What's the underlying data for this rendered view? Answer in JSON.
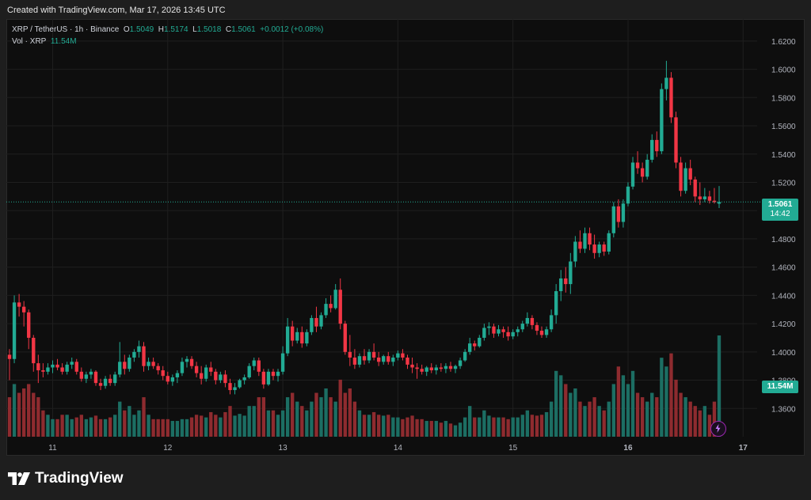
{
  "header": {
    "caption": "Created with TradingView.com, Mar 17, 2026 13:45 UTC"
  },
  "legend": {
    "symbol": "XRP / TetherUS · 1h · Binance",
    "o_label": "O",
    "o": "1.5049",
    "h_label": "H",
    "h": "1.5174",
    "l_label": "L",
    "l": "1.5018",
    "c_label": "C",
    "c": "1.5061",
    "change": "+0.0012 (+0.08%)",
    "vol_label": "Vol · XRP",
    "vol": "11.54M"
  },
  "badges": {
    "price": "1.5061",
    "countdown": "14:42",
    "volume": "11.54M"
  },
  "branding": {
    "name": "TradingView"
  },
  "icons": {
    "logo": "tradingview-logo-icon",
    "bolt": "lightning-bolt-icon"
  },
  "colors": {
    "up": "#22ab94",
    "down": "#f23645",
    "up_vol": "#1c6e63",
    "down_vol": "#8e2b2f",
    "background": "#0e0e0e",
    "grid": "#1f1f1f"
  },
  "chart_data": {
    "type": "candlestick",
    "title": "",
    "symbol": "XRPUSDT",
    "interval": "1h",
    "y_axis": {
      "side": "right",
      "ylim": [
        1.34,
        1.63
      ],
      "ticks": [
        1.36,
        1.38,
        1.4,
        1.42,
        1.44,
        1.46,
        1.48,
        1.5,
        1.52,
        1.54,
        1.56,
        1.58,
        1.6,
        1.62
      ],
      "tick_labels": [
        "1.3600",
        "1.3800",
        "1.4000",
        "1.4200",
        "1.4400",
        "1.4600",
        "1.4800",
        "1.5000",
        "1.5200",
        "1.5400",
        "1.5600",
        "1.5800",
        "1.6000",
        "1.6200"
      ]
    },
    "x_axis": {
      "tick_labels": [
        "11",
        "12",
        "13",
        "14",
        "15",
        "16",
        "17"
      ],
      "tick_index": [
        9,
        33,
        57,
        81,
        105,
        129,
        153
      ]
    },
    "last_price": 1.5061,
    "volume_max": 11.54,
    "grid": true,
    "candles": [
      [
        1.398,
        1.402,
        1.38,
        1.395,
        4.5
      ],
      [
        1.395,
        1.44,
        1.392,
        1.435,
        6
      ],
      [
        1.435,
        1.441,
        1.425,
        1.432,
        5
      ],
      [
        1.432,
        1.436,
        1.418,
        1.428,
        5.5
      ],
      [
        1.428,
        1.43,
        1.402,
        1.41,
        6
      ],
      [
        1.41,
        1.412,
        1.386,
        1.392,
        5
      ],
      [
        1.392,
        1.398,
        1.378,
        1.387,
        4.5
      ],
      [
        1.387,
        1.392,
        1.382,
        1.386,
        3
      ],
      [
        1.386,
        1.392,
        1.384,
        1.389,
        2.5
      ],
      [
        1.389,
        1.394,
        1.385,
        1.391,
        2
      ],
      [
        1.391,
        1.395,
        1.387,
        1.389,
        2
      ],
      [
        1.389,
        1.392,
        1.384,
        1.386,
        2.5
      ],
      [
        1.386,
        1.393,
        1.384,
        1.391,
        2.5
      ],
      [
        1.391,
        1.396,
        1.388,
        1.393,
        2
      ],
      [
        1.393,
        1.395,
        1.384,
        1.386,
        2.2
      ],
      [
        1.386,
        1.389,
        1.379,
        1.381,
        2.5
      ],
      [
        1.381,
        1.386,
        1.378,
        1.384,
        2
      ],
      [
        1.384,
        1.388,
        1.381,
        1.386,
        2.2
      ],
      [
        1.386,
        1.387,
        1.376,
        1.378,
        2.4
      ],
      [
        1.378,
        1.381,
        1.373,
        1.376,
        2
      ],
      [
        1.376,
        1.383,
        1.374,
        1.381,
        2
      ],
      [
        1.381,
        1.384,
        1.376,
        1.378,
        2.2
      ],
      [
        1.378,
        1.386,
        1.376,
        1.384,
        2.5
      ],
      [
        1.384,
        1.407,
        1.382,
        1.393,
        4
      ],
      [
        1.393,
        1.398,
        1.384,
        1.388,
        3
      ],
      [
        1.388,
        1.398,
        1.386,
        1.396,
        3.5
      ],
      [
        1.396,
        1.402,
        1.393,
        1.4,
        2.5
      ],
      [
        1.4,
        1.408,
        1.396,
        1.404,
        3
      ],
      [
        1.404,
        1.407,
        1.386,
        1.39,
        4.5
      ],
      [
        1.39,
        1.396,
        1.387,
        1.393,
        2.5
      ],
      [
        1.393,
        1.396,
        1.388,
        1.39,
        2
      ],
      [
        1.39,
        1.392,
        1.384,
        1.387,
        2
      ],
      [
        1.387,
        1.39,
        1.38,
        1.383,
        2
      ],
      [
        1.383,
        1.386,
        1.377,
        1.379,
        2
      ],
      [
        1.379,
        1.384,
        1.376,
        1.382,
        1.8
      ],
      [
        1.382,
        1.387,
        1.378,
        1.385,
        1.8
      ],
      [
        1.385,
        1.396,
        1.383,
        1.393,
        2
      ],
      [
        1.393,
        1.397,
        1.389,
        1.395,
        2
      ],
      [
        1.395,
        1.397,
        1.388,
        1.39,
        2.2
      ],
      [
        1.39,
        1.393,
        1.382,
        1.385,
        2.5
      ],
      [
        1.385,
        1.39,
        1.377,
        1.381,
        2.4
      ],
      [
        1.381,
        1.391,
        1.379,
        1.389,
        2.2
      ],
      [
        1.389,
        1.393,
        1.383,
        1.386,
        2.8
      ],
      [
        1.386,
        1.388,
        1.377,
        1.38,
        2.5
      ],
      [
        1.38,
        1.386,
        1.378,
        1.384,
        2.2
      ],
      [
        1.384,
        1.387,
        1.375,
        1.378,
        2.8
      ],
      [
        1.378,
        1.381,
        1.37,
        1.373,
        3.5
      ],
      [
        1.373,
        1.378,
        1.37,
        1.375,
        2.4
      ],
      [
        1.375,
        1.381,
        1.374,
        1.38,
        2.6
      ],
      [
        1.38,
        1.384,
        1.377,
        1.382,
        2.4
      ],
      [
        1.382,
        1.392,
        1.381,
        1.39,
        3.5
      ],
      [
        1.39,
        1.396,
        1.387,
        1.394,
        3.5
      ],
      [
        1.394,
        1.396,
        1.383,
        1.386,
        4.5
      ],
      [
        1.386,
        1.388,
        1.374,
        1.377,
        4.5
      ],
      [
        1.377,
        1.388,
        1.376,
        1.386,
        3
      ],
      [
        1.386,
        1.388,
        1.38,
        1.383,
        3
      ],
      [
        1.383,
        1.388,
        1.379,
        1.386,
        2.5
      ],
      [
        1.386,
        1.404,
        1.384,
        1.399,
        3
      ],
      [
        1.399,
        1.424,
        1.397,
        1.418,
        4.5
      ],
      [
        1.418,
        1.422,
        1.404,
        1.408,
        5
      ],
      [
        1.408,
        1.417,
        1.406,
        1.414,
        4
      ],
      [
        1.414,
        1.418,
        1.403,
        1.406,
        3.5
      ],
      [
        1.406,
        1.416,
        1.404,
        1.414,
        3
      ],
      [
        1.414,
        1.426,
        1.412,
        1.424,
        4
      ],
      [
        1.424,
        1.432,
        1.414,
        1.418,
        5
      ],
      [
        1.418,
        1.428,
        1.416,
        1.426,
        4.5
      ],
      [
        1.426,
        1.438,
        1.424,
        1.434,
        5.5
      ],
      [
        1.434,
        1.44,
        1.428,
        1.431,
        4.5
      ],
      [
        1.431,
        1.448,
        1.43,
        1.444,
        4
      ],
      [
        1.444,
        1.452,
        1.416,
        1.42,
        6.5
      ],
      [
        1.42,
        1.422,
        1.398,
        1.4,
        5
      ],
      [
        1.4,
        1.412,
        1.39,
        1.396,
        5.5
      ],
      [
        1.396,
        1.402,
        1.388,
        1.391,
        4
      ],
      [
        1.391,
        1.399,
        1.389,
        1.397,
        3
      ],
      [
        1.397,
        1.402,
        1.391,
        1.394,
        2.5
      ],
      [
        1.394,
        1.402,
        1.392,
        1.4,
        2.5
      ],
      [
        1.4,
        1.406,
        1.394,
        1.396,
        2.8
      ],
      [
        1.396,
        1.4,
        1.39,
        1.393,
        2.5
      ],
      [
        1.393,
        1.398,
        1.391,
        1.397,
        2.4
      ],
      [
        1.397,
        1.4,
        1.391,
        1.393,
        2.5
      ],
      [
        1.393,
        1.398,
        1.39,
        1.396,
        2.2
      ],
      [
        1.396,
        1.401,
        1.394,
        1.399,
        2.2
      ],
      [
        1.399,
        1.402,
        1.394,
        1.396,
        2
      ],
      [
        1.396,
        1.398,
        1.388,
        1.391,
        2.2
      ],
      [
        1.391,
        1.396,
        1.385,
        1.389,
        2.4
      ],
      [
        1.389,
        1.392,
        1.381,
        1.388,
        2
      ],
      [
        1.388,
        1.391,
        1.384,
        1.386,
        2
      ],
      [
        1.386,
        1.39,
        1.383,
        1.389,
        1.8
      ],
      [
        1.389,
        1.392,
        1.385,
        1.387,
        1.8
      ],
      [
        1.387,
        1.391,
        1.384,
        1.389,
        1.8
      ],
      [
        1.389,
        1.392,
        1.386,
        1.388,
        1.6
      ],
      [
        1.388,
        1.392,
        1.385,
        1.39,
        1.8
      ],
      [
        1.39,
        1.393,
        1.386,
        1.388,
        1.5
      ],
      [
        1.388,
        1.391,
        1.385,
        1.39,
        1.3
      ],
      [
        1.39,
        1.396,
        1.388,
        1.394,
        1.6
      ],
      [
        1.394,
        1.402,
        1.393,
        1.4,
        2.2
      ],
      [
        1.4,
        1.41,
        1.398,
        1.406,
        3.5
      ],
      [
        1.406,
        1.408,
        1.401,
        1.404,
        2.2
      ],
      [
        1.404,
        1.412,
        1.403,
        1.41,
        2.2
      ],
      [
        1.41,
        1.42,
        1.408,
        1.417,
        3
      ],
      [
        1.417,
        1.421,
        1.412,
        1.418,
        2.4
      ],
      [
        1.418,
        1.42,
        1.41,
        1.413,
        2.2
      ],
      [
        1.413,
        1.419,
        1.411,
        1.416,
        2.2
      ],
      [
        1.416,
        1.418,
        1.41,
        1.414,
        2.2
      ],
      [
        1.414,
        1.418,
        1.408,
        1.411,
        2
      ],
      [
        1.411,
        1.416,
        1.409,
        1.414,
        2.2
      ],
      [
        1.414,
        1.418,
        1.411,
        1.416,
        2.2
      ],
      [
        1.416,
        1.422,
        1.414,
        1.42,
        2.5
      ],
      [
        1.42,
        1.428,
        1.418,
        1.424,
        3
      ],
      [
        1.424,
        1.426,
        1.416,
        1.419,
        2.5
      ],
      [
        1.419,
        1.421,
        1.412,
        1.415,
        2.4
      ],
      [
        1.415,
        1.418,
        1.41,
        1.412,
        2.5
      ],
      [
        1.412,
        1.418,
        1.41,
        1.416,
        2.8
      ],
      [
        1.416,
        1.43,
        1.414,
        1.426,
        4
      ],
      [
        1.426,
        1.448,
        1.42,
        1.443,
        7.5
      ],
      [
        1.443,
        1.458,
        1.436,
        1.452,
        7
      ],
      [
        1.452,
        1.46,
        1.442,
        1.448,
        6
      ],
      [
        1.448,
        1.47,
        1.441,
        1.464,
        5
      ],
      [
        1.464,
        1.482,
        1.46,
        1.478,
        5.5
      ],
      [
        1.478,
        1.486,
        1.47,
        1.473,
        4
      ],
      [
        1.473,
        1.488,
        1.47,
        1.484,
        3.5
      ],
      [
        1.484,
        1.488,
        1.472,
        1.476,
        4
      ],
      [
        1.476,
        1.483,
        1.466,
        1.47,
        4.5
      ],
      [
        1.47,
        1.478,
        1.467,
        1.476,
        3.5
      ],
      [
        1.476,
        1.478,
        1.468,
        1.471,
        3
      ],
      [
        1.471,
        1.486,
        1.469,
        1.484,
        4
      ],
      [
        1.484,
        1.506,
        1.481,
        1.503,
        6
      ],
      [
        1.503,
        1.508,
        1.488,
        1.492,
        8
      ],
      [
        1.492,
        1.508,
        1.488,
        1.505,
        7
      ],
      [
        1.505,
        1.52,
        1.503,
        1.517,
        6
      ],
      [
        1.517,
        1.538,
        1.515,
        1.534,
        7.5
      ],
      [
        1.534,
        1.542,
        1.526,
        1.53,
        5
      ],
      [
        1.53,
        1.534,
        1.52,
        1.524,
        4.5
      ],
      [
        1.524,
        1.54,
        1.522,
        1.536,
        4
      ],
      [
        1.536,
        1.554,
        1.534,
        1.55,
        5
      ],
      [
        1.55,
        1.556,
        1.538,
        1.542,
        4.5
      ],
      [
        1.542,
        1.59,
        1.54,
        1.586,
        9
      ],
      [
        1.586,
        1.606,
        1.578,
        1.594,
        8
      ],
      [
        1.594,
        1.598,
        1.562,
        1.566,
        9.5
      ],
      [
        1.566,
        1.57,
        1.53,
        1.534,
        6.5
      ],
      [
        1.534,
        1.538,
        1.51,
        1.514,
        5
      ],
      [
        1.514,
        1.534,
        1.512,
        1.53,
        4.5
      ],
      [
        1.53,
        1.536,
        1.518,
        1.522,
        4
      ],
      [
        1.522,
        1.524,
        1.506,
        1.51,
        3.5
      ],
      [
        1.51,
        1.52,
        1.504,
        1.508,
        3
      ],
      [
        1.508,
        1.516,
        1.506,
        1.51,
        3.5
      ],
      [
        1.51,
        1.514,
        1.505,
        1.507,
        2.5
      ],
      [
        1.507,
        1.516,
        1.505,
        1.506,
        4
      ],
      [
        1.5049,
        1.5174,
        1.5018,
        1.5061,
        11.54
      ]
    ]
  }
}
